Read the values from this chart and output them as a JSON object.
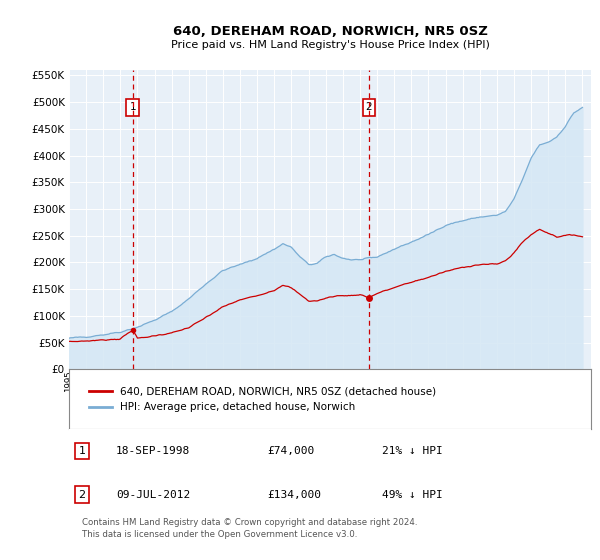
{
  "title": "640, DEREHAM ROAD, NORWICH, NR5 0SZ",
  "subtitle": "Price paid vs. HM Land Registry's House Price Index (HPI)",
  "legend_line1": "640, DEREHAM ROAD, NORWICH, NR5 0SZ (detached house)",
  "legend_line2": "HPI: Average price, detached house, Norwich",
  "marker1_date": "18-SEP-1998",
  "marker1_price": 74000,
  "marker1_label": "21% ↓ HPI",
  "marker2_date": "09-JUL-2012",
  "marker2_price": 134000,
  "marker2_label": "49% ↓ HPI",
  "footnote": "Contains HM Land Registry data © Crown copyright and database right 2024.\nThis data is licensed under the Open Government Licence v3.0.",
  "hpi_color": "#7aadd4",
  "hpi_fill_color": "#d6e8f5",
  "price_color": "#cc0000",
  "marker_box_color": "#cc0000",
  "background_color": "#e8f0f8",
  "ylim": [
    0,
    560000
  ],
  "yticks": [
    0,
    50000,
    100000,
    150000,
    200000,
    250000,
    300000,
    350000,
    400000,
    450000,
    500000,
    550000
  ],
  "marker1_x": 1998.72,
  "marker2_x": 2012.53,
  "x_min": 1995.0,
  "x_max": 2025.5
}
